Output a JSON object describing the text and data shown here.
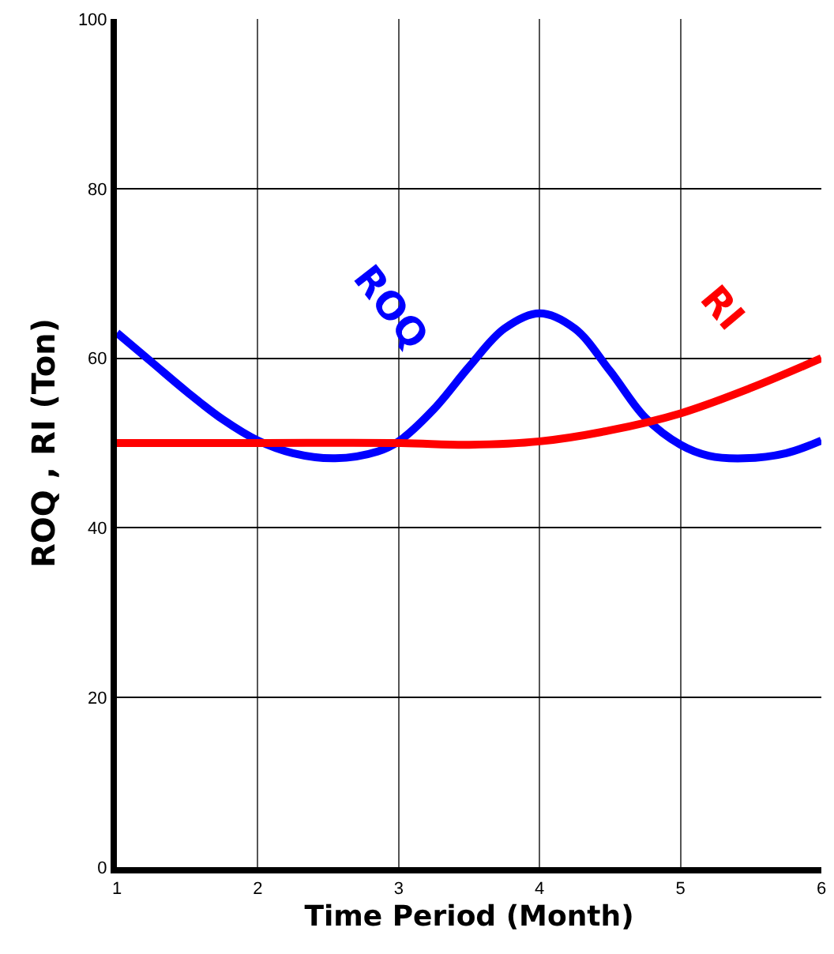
{
  "chart_data": {
    "type": "line",
    "xlabel": "Time Period (Month)",
    "ylabel": "ROQ , RI (Ton)",
    "xlim": [
      1,
      6
    ],
    "xticks": [
      1,
      2,
      3,
      4,
      5,
      6
    ],
    "ylim": [
      0,
      100
    ],
    "yticks": [
      0,
      20,
      40,
      60,
      80,
      100
    ],
    "grid": true,
    "legend": false,
    "marker": "none",
    "line_style": "solid",
    "series": [
      {
        "name": "ROQ",
        "color": "#0000ff",
        "x": [
          1,
          1.25,
          1.5,
          1.75,
          2,
          2.25,
          2.55,
          2.85,
          3,
          3.25,
          3.5,
          3.75,
          4,
          4.25,
          4.5,
          4.75,
          5,
          5.2,
          5.45,
          5.75,
          6
        ],
        "values": [
          63,
          59.5,
          56,
          52.8,
          50.3,
          48.8,
          48.2,
          49,
          50.2,
          54,
          59,
          63.5,
          65.3,
          63.5,
          58.5,
          53,
          49.8,
          48.5,
          48.2,
          48.8,
          50.3
        ]
      },
      {
        "name": "RI",
        "color": "#ff0000",
        "x": [
          1,
          2,
          3,
          3.5,
          4,
          4.5,
          5,
          5.5,
          6
        ],
        "values": [
          50,
          50,
          50,
          49.8,
          50.2,
          51.5,
          53.5,
          56.5,
          60
        ]
      }
    ]
  }
}
